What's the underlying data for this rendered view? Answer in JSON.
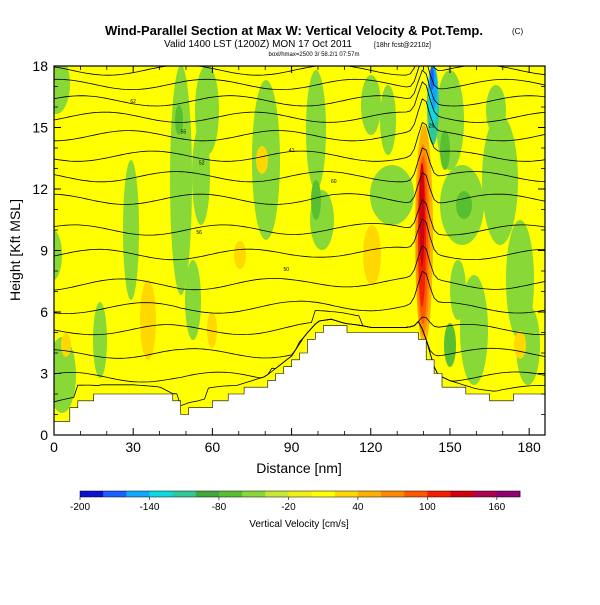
{
  "chart_data": {
    "type": "heatmap",
    "title": "Wind-Parallel Section at Max W: Vertical Velocity & Pot.Temp.",
    "title_mark": "(C)",
    "subtitle": "Valid 1400 LST (1200Z) MON 17 Oct 2011",
    "subtitle_note": "[18hr fcst@2210z]",
    "info_line": "boxl/hmax=2500 3/ 58.2/1 07:57m",
    "xlabel": "Distance [nm]",
    "ylabel": "Height [Kft MSL]",
    "xlim": [
      0,
      186
    ],
    "ylim": [
      0,
      18
    ],
    "xticks": [
      0,
      30,
      60,
      90,
      120,
      150,
      180
    ],
    "yticks": [
      0,
      3,
      6,
      9,
      12,
      15,
      18
    ],
    "colorbar": {
      "label": "Vertical Velocity [cm/s]",
      "range": [
        -200,
        180
      ],
      "ticks": [
        -200,
        -140,
        -80,
        -20,
        40,
        100,
        160
      ],
      "colors": [
        "#1010d0",
        "#1860ff",
        "#10a8ff",
        "#10d8e0",
        "#30c898",
        "#40a838",
        "#58c030",
        "#88d838",
        "#c8e838",
        "#f0f018",
        "#ffff00",
        "#ffd800",
        "#ffb000",
        "#ff8800",
        "#ff5800",
        "#f02000",
        "#d00010",
        "#b00050",
        "#900070"
      ]
    },
    "features": {
      "updraft_core": {
        "x_nm": [
          137,
          143
        ],
        "z_kft": [
          5,
          18
        ],
        "max_cm_s": 180
      },
      "downdraft_core": {
        "x_nm": [
          141,
          146
        ],
        "z_kft": [
          13.5,
          18
        ],
        "min_cm_s": -200
      },
      "terrain_profile": {
        "x_nm": [
          0,
          3,
          6,
          10,
          18,
          30,
          40,
          46,
          48,
          50,
          54,
          60,
          65,
          70,
          80,
          90,
          95,
          100,
          105,
          110,
          116,
          120,
          125,
          130,
          135,
          138,
          140,
          143,
          145,
          150,
          155,
          160,
          166,
          170,
          175,
          180,
          186
        ],
        "z_kft": [
          0.5,
          0.8,
          1.2,
          1.7,
          2.1,
          2.1,
          2.0,
          1.6,
          1.0,
          1.2,
          1.3,
          1.5,
          1.8,
          2.1,
          2.5,
          3.5,
          4.5,
          5.2,
          5.3,
          5.1,
          5.0,
          4.9,
          4.9,
          4.9,
          4.9,
          4.8,
          4.0,
          3.2,
          2.6,
          2.3,
          2.1,
          1.9,
          1.8,
          1.7,
          1.9,
          2.0,
          2.0
        ]
      }
    },
    "isentrope_labels": [
      "62",
      "55",
      "52",
      "41",
      "60",
      "56",
      "50",
      "25"
    ]
  }
}
